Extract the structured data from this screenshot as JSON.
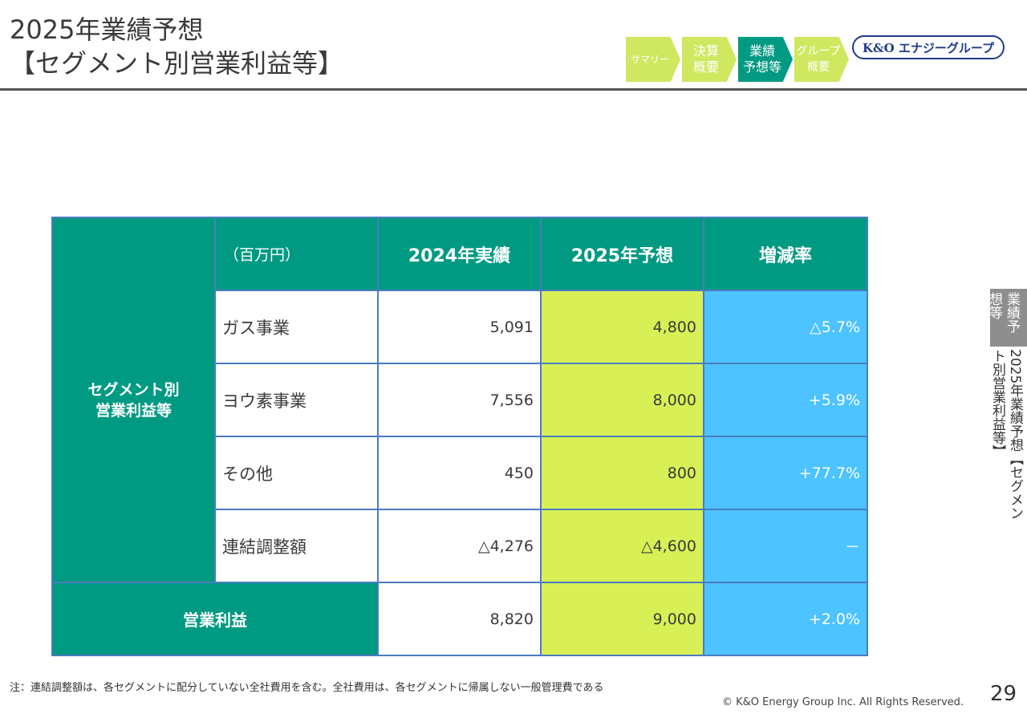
{
  "header": {
    "title_line1": "2025年業績予想",
    "title_line2": "【セグメント別営業利益等】",
    "nav": [
      {
        "l1": "サマリー",
        "l2": ""
      },
      {
        "l1": "決算",
        "l2": "概要"
      },
      {
        "l1": "業績",
        "l2": "予想等"
      },
      {
        "l1": "グループ",
        "l2": "概要"
      }
    ],
    "logo": "K&O エナジーグループ"
  },
  "side": {
    "badge": "業績予想等",
    "section": "2025年業績予想【セグメント別営業利益等】"
  },
  "table": {
    "unit": "（百万円）",
    "col_2024": "2024年実績",
    "col_2025": "2025年予想",
    "col_rate": "増減率",
    "segment_label_l1": "セグメント別",
    "segment_label_l2": "営業利益等",
    "rows": [
      {
        "name": "ガス事業",
        "v2024": "5,091",
        "v2025": "4,800",
        "rate": "△5.7%"
      },
      {
        "name": "ヨウ素事業",
        "v2024": "7,556",
        "v2025": "8,000",
        "rate": "+5.9%"
      },
      {
        "name": "その他",
        "v2024": "450",
        "v2025": "800",
        "rate": "+77.7%"
      },
      {
        "name": "連結調整額",
        "v2024": "△4,276",
        "v2025": "△4,600",
        "rate": "－"
      }
    ],
    "total": {
      "name": "営業利益",
      "v2024": "8,820",
      "v2025": "9,000",
      "rate": "+2.0%"
    }
  },
  "footer": {
    "note": "注：連結調整額は、各セグメントに配分していない全社費用を含む。全社費用は、各セグメントに帰属しない一般管理費である",
    "copyright": "© K&O Energy Group Inc. All Rights Reserved.",
    "page": "29"
  },
  "colors": {
    "teal": "#009a82",
    "lime": "#d8f055",
    "blue": "#4dc3ff",
    "border": "#4a7cc0"
  }
}
